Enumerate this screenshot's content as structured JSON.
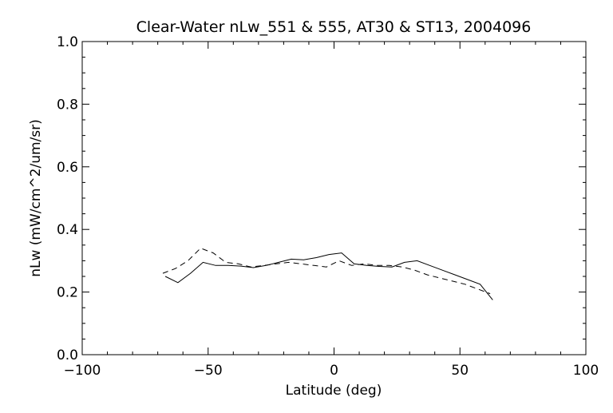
{
  "chart_data": {
    "type": "line",
    "title": "Clear-Water nLw_551 & 555, AT30 & ST13, 2004096",
    "xlabel": "Latitude (deg)",
    "ylabel": "nLw (mW/cm^2/um/sr)",
    "xlim": [
      -100,
      100
    ],
    "ylim": [
      0.0,
      1.0
    ],
    "xticks": [
      -100,
      -50,
      0,
      50,
      100
    ],
    "xtick_labels": [
      "−100",
      "−50",
      "0",
      "50",
      "100"
    ],
    "yticks": [
      0.0,
      0.2,
      0.4,
      0.6,
      0.8,
      1.0
    ],
    "ytick_labels": [
      "0.0",
      "0.2",
      "0.4",
      "0.6",
      "0.8",
      "1.0"
    ],
    "grid": false,
    "series": [
      {
        "style": "solid",
        "x": [
          -67,
          -62,
          -57,
          -52,
          -47,
          -42,
          -37,
          -32,
          -27,
          -22,
          -17,
          -12,
          -7,
          -2,
          3,
          8,
          13,
          18,
          23,
          28,
          33,
          38,
          43,
          48,
          53,
          58,
          63
        ],
        "y": [
          0.25,
          0.23,
          0.26,
          0.295,
          0.285,
          0.285,
          0.283,
          0.278,
          0.285,
          0.295,
          0.305,
          0.303,
          0.31,
          0.32,
          0.325,
          0.29,
          0.285,
          0.282,
          0.28,
          0.295,
          0.3,
          0.285,
          0.27,
          0.255,
          0.24,
          0.225,
          0.175
        ]
      },
      {
        "style": "dashed",
        "x": [
          -68,
          -63,
          -58,
          -53,
          -48,
          -43,
          -38,
          -33,
          -28,
          -23,
          -18,
          -13,
          -8,
          -3,
          2,
          7,
          12,
          17,
          22,
          27,
          32,
          37,
          42,
          47,
          52,
          57,
          62
        ],
        "y": [
          0.26,
          0.275,
          0.3,
          0.34,
          0.325,
          0.295,
          0.29,
          0.28,
          0.285,
          0.29,
          0.295,
          0.29,
          0.285,
          0.28,
          0.3,
          0.285,
          0.29,
          0.285,
          0.285,
          0.28,
          0.27,
          0.255,
          0.245,
          0.235,
          0.225,
          0.21,
          0.195
        ]
      }
    ]
  }
}
